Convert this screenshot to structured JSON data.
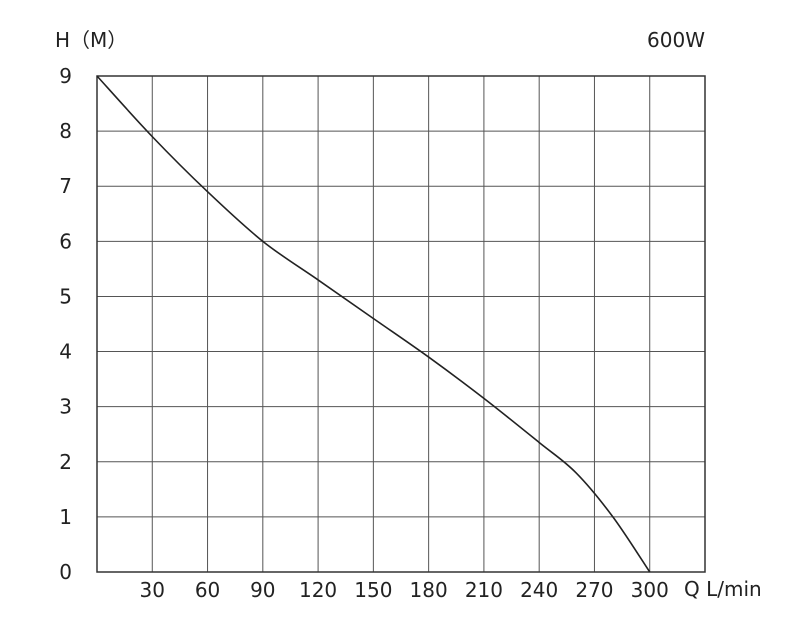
{
  "chart_data": {
    "type": "line",
    "title": "600W",
    "ylabel": "H（M）",
    "xlabel": "Q L/min",
    "xlim": [
      0,
      330
    ],
    "ylim": [
      0,
      9
    ],
    "x_ticks": [
      30,
      60,
      90,
      120,
      150,
      180,
      210,
      240,
      270,
      300
    ],
    "y_ticks": [
      0,
      1,
      2,
      3,
      4,
      5,
      6,
      7,
      8,
      9
    ],
    "grid": true,
    "series": [
      {
        "color": "#222222",
        "x": [
          0,
          30,
          60,
          90,
          120,
          150,
          180,
          210,
          240,
          260,
          280,
          300
        ],
        "y": [
          9,
          7.9,
          6.9,
          6.0,
          5.3,
          4.6,
          3.9,
          3.15,
          2.35,
          1.8,
          1.0,
          0
        ]
      }
    ]
  }
}
